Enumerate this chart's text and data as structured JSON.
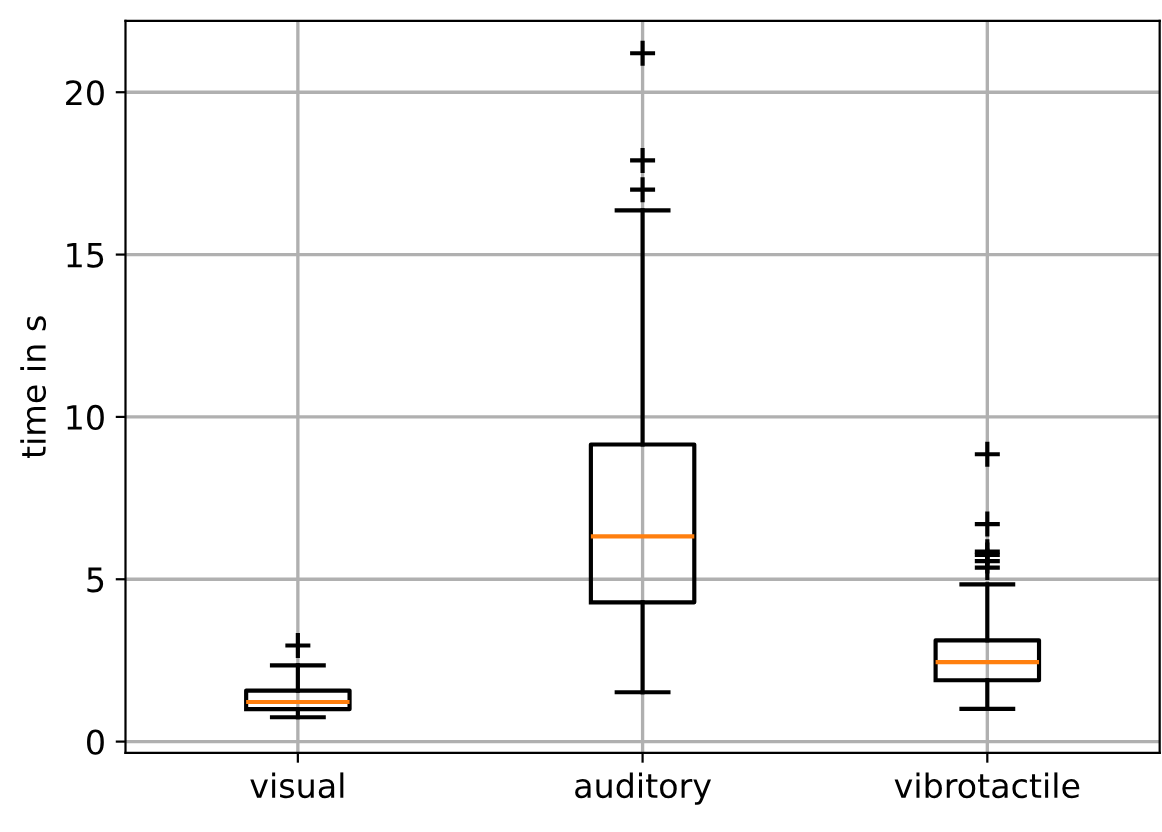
{
  "chart_data": {
    "type": "box",
    "ylabel": "time in s",
    "categories": [
      "visual",
      "auditory",
      "vibrotactile"
    ],
    "boxes": [
      {
        "low": 0.75,
        "q1": 1.0,
        "median": 1.22,
        "q3": 1.57,
        "high": 2.35,
        "outliers": [
          2.96
        ]
      },
      {
        "low": 1.52,
        "q1": 4.29,
        "median": 6.32,
        "q3": 9.15,
        "high": 16.36,
        "outliers": [
          17.0,
          17.9,
          21.2
        ]
      },
      {
        "low": 1.01,
        "q1": 1.89,
        "median": 2.45,
        "q3": 3.12,
        "high": 4.84,
        "outliers": [
          5.36,
          5.56,
          5.75,
          5.85,
          6.7,
          8.85
        ]
      }
    ],
    "ylim": [
      -0.35,
      22.2
    ],
    "yticks": [
      0,
      5,
      10,
      15,
      20
    ],
    "grid": true
  }
}
